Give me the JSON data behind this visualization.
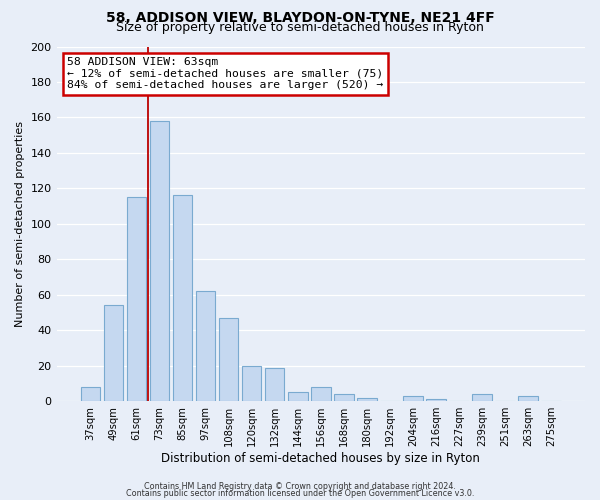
{
  "title1": "58, ADDISON VIEW, BLAYDON-ON-TYNE, NE21 4FF",
  "title2": "Size of property relative to semi-detached houses in Ryton",
  "xlabel": "Distribution of semi-detached houses by size in Ryton",
  "ylabel": "Number of semi-detached properties",
  "bar_labels": [
    "37sqm",
    "49sqm",
    "61sqm",
    "73sqm",
    "85sqm",
    "97sqm",
    "108sqm",
    "120sqm",
    "132sqm",
    "144sqm",
    "156sqm",
    "168sqm",
    "180sqm",
    "192sqm",
    "204sqm",
    "216sqm",
    "227sqm",
    "239sqm",
    "251sqm",
    "263sqm",
    "275sqm"
  ],
  "bar_values": [
    8,
    54,
    115,
    158,
    116,
    62,
    47,
    20,
    19,
    5,
    8,
    4,
    2,
    0,
    3,
    1,
    0,
    4,
    0,
    3,
    0
  ],
  "bar_color": "#c5d8f0",
  "bar_edge_color": "#7aaad0",
  "subject_line_color": "#bb0000",
  "annotation_title": "58 ADDISON VIEW: 63sqm",
  "annotation_line1": "← 12% of semi-detached houses are smaller (75)",
  "annotation_line2": "84% of semi-detached houses are larger (520) →",
  "annotation_box_facecolor": "#ffffff",
  "annotation_box_edgecolor": "#cc0000",
  "ylim": [
    0,
    200
  ],
  "yticks": [
    0,
    20,
    40,
    60,
    80,
    100,
    120,
    140,
    160,
    180,
    200
  ],
  "footer1": "Contains HM Land Registry data © Crown copyright and database right 2024.",
  "footer2": "Contains public sector information licensed under the Open Government Licence v3.0.",
  "background_color": "#e8eef8",
  "plot_bg_color": "#e8eef8",
  "grid_color": "#ffffff",
  "title1_fontsize": 10,
  "title2_fontsize": 9
}
